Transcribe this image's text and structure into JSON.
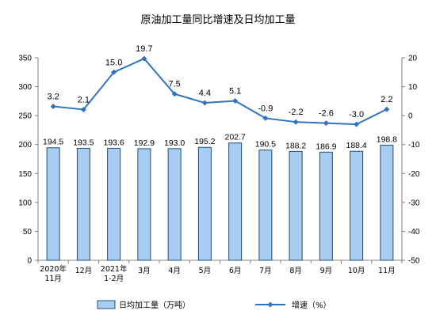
{
  "chart_data": {
    "type": "bar",
    "title": "原油加工量同比增速及日均加工量",
    "categories": [
      [
        "2020年",
        "11月"
      ],
      [
        "12月"
      ],
      [
        "2021年",
        "1-2月"
      ],
      [
        "3月"
      ],
      [
        "4月"
      ],
      [
        "5月"
      ],
      [
        "6月"
      ],
      [
        "7月"
      ],
      [
        "8月"
      ],
      [
        "9月"
      ],
      [
        "10月"
      ],
      [
        "11月"
      ]
    ],
    "series": [
      {
        "name": "日均加工量（万吨）",
        "type": "bar",
        "axis": "left",
        "values": [
          194.5,
          193.5,
          193.6,
          192.9,
          193.0,
          195.2,
          202.7,
          190.5,
          188.2,
          186.9,
          188.4,
          198.8
        ],
        "labels": [
          "194.5",
          "193.5",
          "193.6",
          "192.9",
          "193.0",
          "195.2",
          "202.7",
          "190.5",
          "188.2",
          "186.9",
          "188.4",
          "198.8"
        ]
      },
      {
        "name": "增速（%）",
        "type": "line",
        "axis": "right",
        "values": [
          3.2,
          2.1,
          15.0,
          19.7,
          7.5,
          4.4,
          5.1,
          -0.9,
          -2.2,
          -2.6,
          -3.0,
          2.2
        ],
        "labels": [
          "3.2",
          "2.1",
          "15.0",
          "19.7",
          "7.5",
          "4.4",
          "5.1",
          "-0.9",
          "-2.2",
          "-2.6",
          "-3.0",
          "2.2"
        ]
      }
    ],
    "y_left": {
      "min": 0,
      "max": 350,
      "ticks": [
        "0",
        "50",
        "100",
        "150",
        "200",
        "250",
        "300",
        "350"
      ]
    },
    "y_right": {
      "min": -50,
      "max": 20,
      "ticks": [
        "-50",
        "-40",
        "-30",
        "-20",
        "-10",
        "0",
        "10",
        "20"
      ]
    },
    "grid": false,
    "legend_position": "bottom",
    "colors": {
      "bar_fill": "#a7cdf0",
      "bar_stroke": "#1f4e79",
      "line": "#2e73c0",
      "axis": "#808080"
    }
  }
}
